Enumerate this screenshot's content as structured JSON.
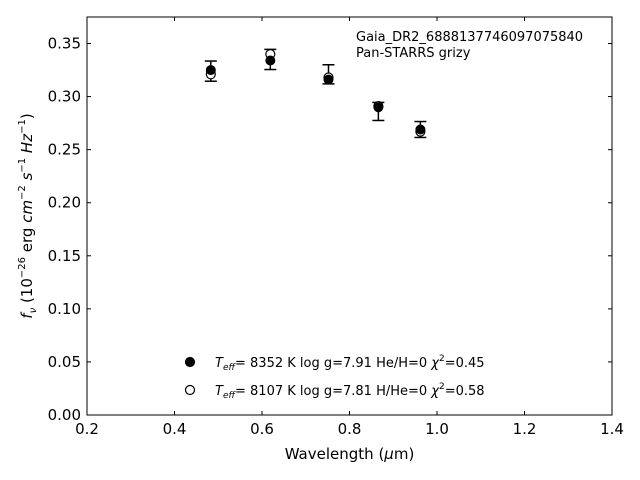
{
  "chart_data": {
    "type": "scatter",
    "title": "",
    "annotation": [
      "Gaia_DR2_6888137746097075840",
      "Pan-STARRS grizy"
    ],
    "xlabel": "Wavelength (μm)",
    "ylabel": "f_ν (10^-26 erg cm^-2 s^-1 Hz^-1)",
    "xlim": [
      0.2,
      1.4
    ],
    "ylim": [
      0.0,
      0.375
    ],
    "xticks": [
      0.2,
      0.4,
      0.6,
      0.8,
      1.0,
      1.2,
      1.4
    ],
    "xtick_labels": [
      "0.2",
      "0.4",
      "0.6",
      "0.8",
      "1.0",
      "1.2",
      "1.4"
    ],
    "yticks": [
      0.0,
      0.05,
      0.1,
      0.15,
      0.2,
      0.25,
      0.3,
      0.35
    ],
    "ytick_labels": [
      "0.00",
      "0.05",
      "0.10",
      "0.15",
      "0.20",
      "0.25",
      "0.30",
      "0.35"
    ],
    "grid": false,
    "legend_position": "bottom-center",
    "series": [
      {
        "name": "Teff= 8352 K log g=7.91 He/H=0 χ2=0.45",
        "marker": "filled-circle",
        "x": [
          0.483,
          0.619,
          0.752,
          0.866,
          0.962
        ],
        "y": [
          0.325,
          0.334,
          0.316,
          0.29,
          0.269
        ]
      },
      {
        "name": "Teff= 8107 K log g=7.81 H/He=0 χ2=0.58",
        "marker": "open-circle",
        "x": [
          0.483,
          0.619,
          0.752,
          0.866,
          0.962
        ],
        "y": [
          0.321,
          0.34,
          0.318,
          0.291,
          0.267
        ]
      }
    ],
    "observed": {
      "x": [
        0.483,
        0.619,
        0.752,
        0.866,
        0.962
      ],
      "y": [
        0.324,
        0.335,
        0.321,
        0.286,
        0.269
      ],
      "yerr": [
        0.0095,
        0.0095,
        0.009,
        0.0085,
        0.0075
      ]
    },
    "legend": [
      {
        "prefix": "T",
        "sub": "eff",
        "mid": "=  8352 K  log g=7.91  He/H=0  ",
        "chi": "χ",
        "sup": "2",
        "tail": "=0.45"
      },
      {
        "prefix": "T",
        "sub": "eff",
        "mid": "=  8107 K  log g=7.81  H/He=0  ",
        "chi": "χ",
        "sup": "2",
        "tail": "=0.58"
      }
    ]
  }
}
